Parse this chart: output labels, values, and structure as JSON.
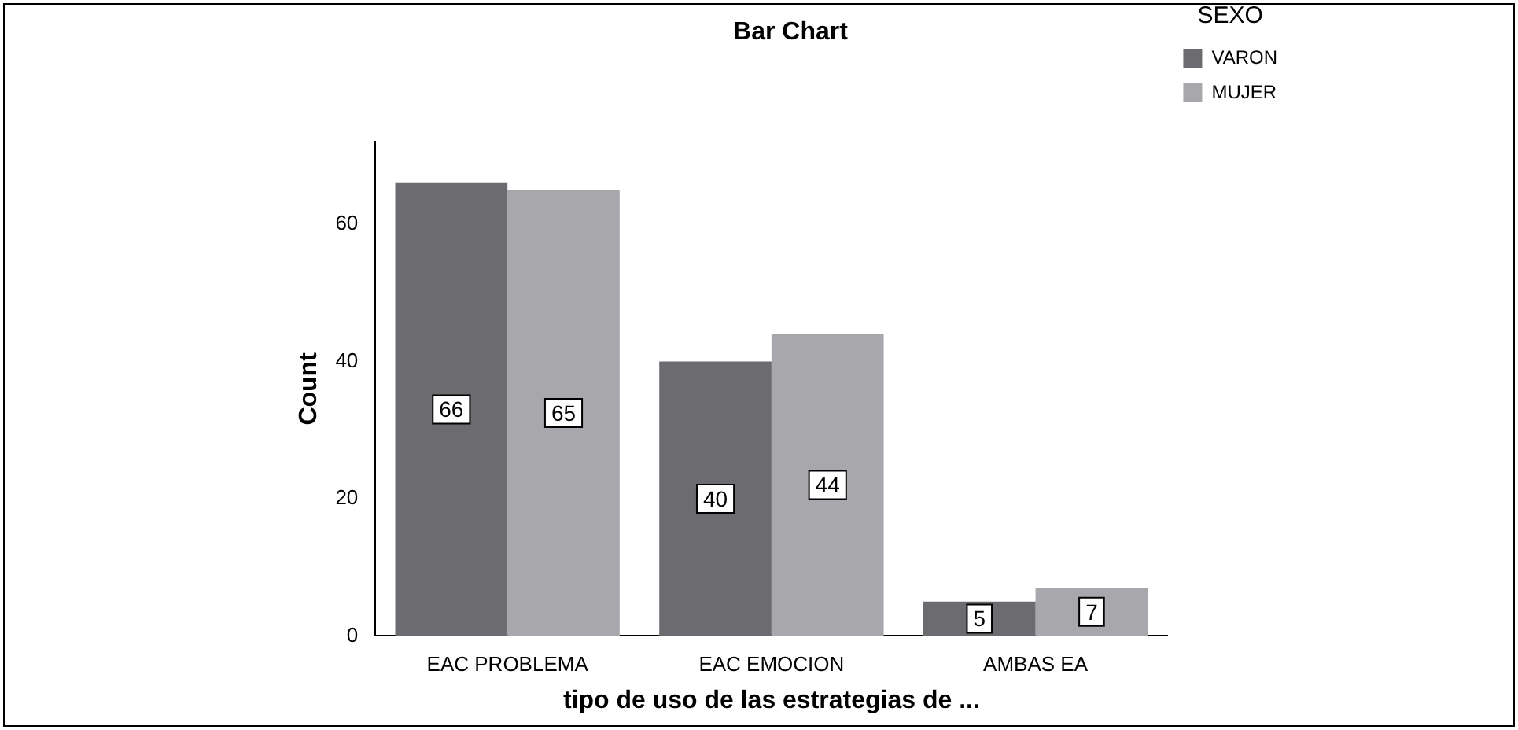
{
  "chart_data": {
    "type": "bar",
    "title": "Bar Chart",
    "xlabel": "tipo de uso de las estrategias de ...",
    "ylabel": "Count",
    "legend_title": "SEXO",
    "categories": [
      "EAC PROBLEMA",
      "EAC EMOCION",
      "AMBAS EA"
    ],
    "series": [
      {
        "name": "VARON",
        "color": "#6b6b70",
        "values": [
          66,
          40,
          5
        ]
      },
      {
        "name": "MUJER",
        "color": "#a8a8ac",
        "values": [
          65,
          44,
          7
        ]
      }
    ],
    "ylim": [
      0,
      72
    ],
    "yticks": [
      0,
      20,
      40,
      60
    ],
    "grid": false,
    "legend": "top right",
    "data_labels": true
  }
}
